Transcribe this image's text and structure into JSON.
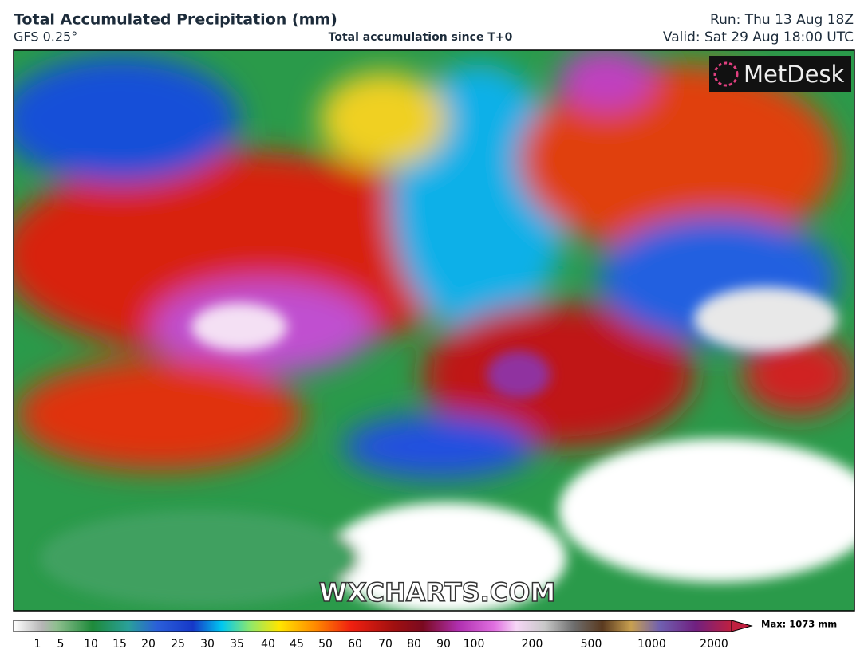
{
  "header": {
    "title": "Total Accumulated Precipitation (mm)",
    "model": "GFS 0.25°",
    "subtitle": "Total accumulation since T+0",
    "run": "Run: Thu 13 Aug 18Z",
    "valid": "Valid: Sat 29 Aug 18:00 UTC"
  },
  "map": {
    "logo": "MetDesk",
    "watermark": "WXCHARTS.COM"
  },
  "colorbar": {
    "ticks": [
      1,
      5,
      10,
      15,
      20,
      25,
      30,
      35,
      40,
      45,
      50,
      60,
      70,
      80,
      90,
      100,
      200,
      500,
      1000,
      2000
    ],
    "max_label": "Max: 1073 mm"
  }
}
